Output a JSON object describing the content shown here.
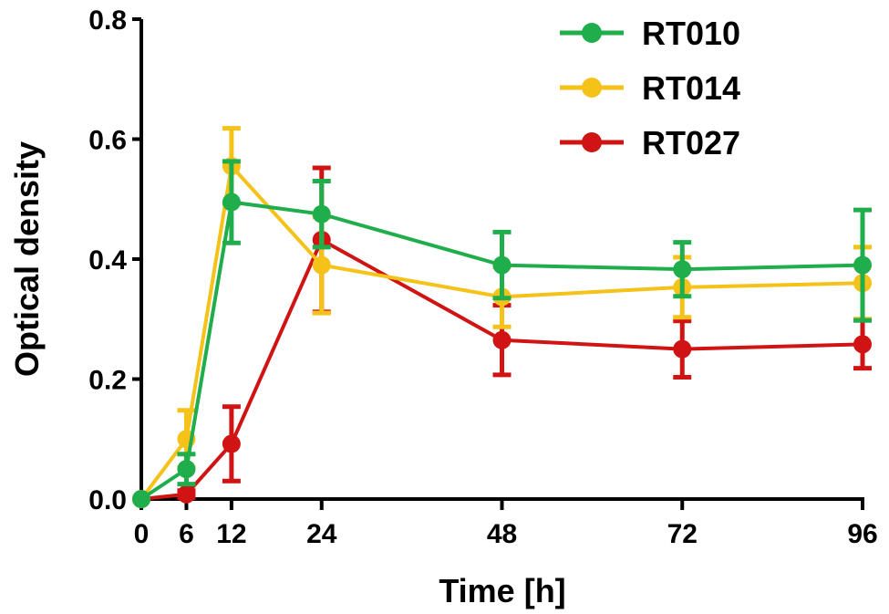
{
  "chart_data": {
    "type": "line",
    "title": "",
    "xlabel": "Time [h]",
    "ylabel": "Optical density",
    "x": [
      0,
      6,
      12,
      24,
      48,
      72,
      96
    ],
    "xticks": [
      0,
      6,
      12,
      24,
      48,
      72,
      96
    ],
    "xtick_labels": [
      "0",
      "6",
      "12",
      "24",
      "48",
      "72",
      "96"
    ],
    "yticks": [
      0.0,
      0.2,
      0.4,
      0.6,
      0.8
    ],
    "ytick_labels": [
      "0.0",
      "0.2",
      "0.4",
      "0.6",
      "0.8"
    ],
    "xlim": [
      0,
      96
    ],
    "ylim": [
      0,
      0.8
    ],
    "grid": false,
    "legend_position": "top-right",
    "series": [
      {
        "name": "RT010",
        "color": "#1fae4b",
        "values": [
          0.0,
          0.05,
          0.495,
          0.475,
          0.39,
          0.383,
          0.39
        ],
        "errors": [
          0.0,
          0.025,
          0.068,
          0.055,
          0.055,
          0.045,
          0.092
        ]
      },
      {
        "name": "RT014",
        "color": "#f5c21a",
        "values": [
          0.0,
          0.1,
          0.555,
          0.39,
          0.337,
          0.353,
          0.36
        ],
        "errors": [
          0.0,
          0.048,
          0.063,
          0.08,
          0.05,
          0.05,
          0.06
        ]
      },
      {
        "name": "RT027",
        "color": "#d01414",
        "values": [
          0.0,
          0.008,
          0.092,
          0.432,
          0.265,
          0.25,
          0.258
        ],
        "errors": [
          0.0,
          0.006,
          0.062,
          0.12,
          0.058,
          0.047,
          0.04
        ]
      }
    ]
  }
}
